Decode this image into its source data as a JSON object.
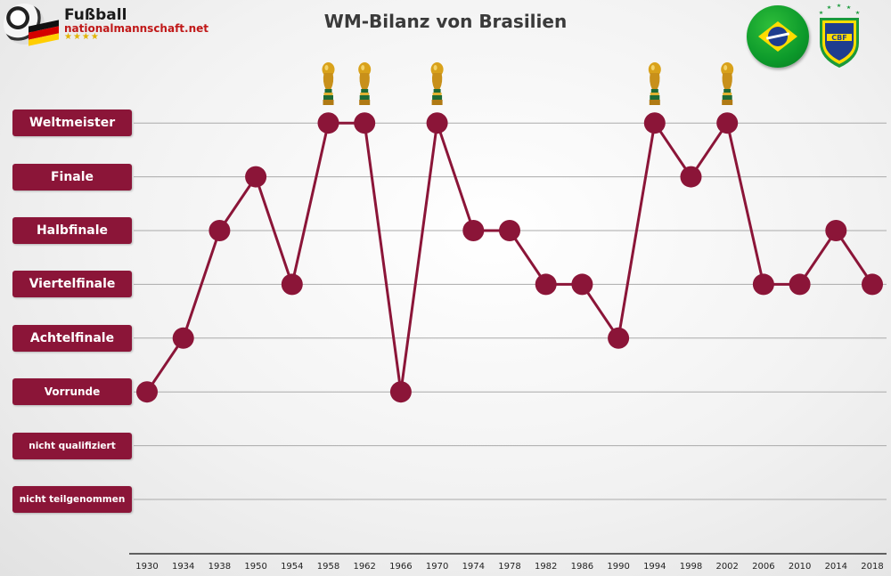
{
  "logo": {
    "line1": "Fußball",
    "line2": "nationalmannschaft.net",
    "stars": "★★★★"
  },
  "chart_data": {
    "type": "line",
    "title": "WM-Bilanz von Brasilien",
    "levels": [
      "nicht teilgenommen",
      "nicht qualifiziert",
      "Vorrunde",
      "Achtelfinale",
      "Viertelfinale",
      "Halbfinale",
      "Finale",
      "Weltmeister"
    ],
    "x": [
      "1930",
      "1934",
      "1938",
      "1950",
      "1954",
      "1958",
      "1962",
      "1966",
      "1970",
      "1974",
      "1978",
      "1982",
      "1986",
      "1990",
      "1994",
      "1998",
      "2002",
      "2006",
      "2010",
      "2014",
      "2018"
    ],
    "series": [
      {
        "values": [
          "Vorrunde",
          "Achtelfinale",
          "Halbfinale",
          "Finale",
          "Viertelfinale",
          "Weltmeister",
          "Weltmeister",
          "Vorrunde",
          "Weltmeister",
          "Halbfinale",
          "Halbfinale",
          "Viertelfinale",
          "Viertelfinale",
          "Achtelfinale",
          "Weltmeister",
          "Finale",
          "Weltmeister",
          "Viertelfinale",
          "Viertelfinale",
          "Halbfinale",
          "Viertelfinale"
        ]
      }
    ],
    "trophy_years": [
      "1958",
      "1962",
      "1970",
      "1994",
      "2002"
    ],
    "colors": {
      "line": "#8b1538",
      "marker": "#8b1538",
      "label_bg": "#8b1538",
      "grid": "#aaaaaa"
    },
    "grid": true
  }
}
